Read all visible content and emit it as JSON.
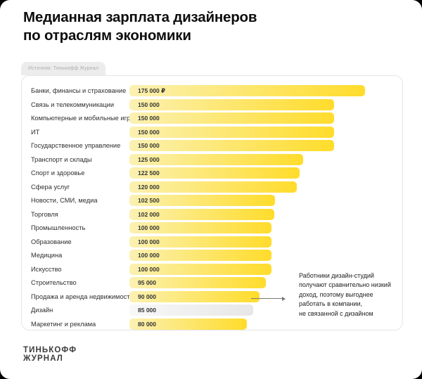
{
  "header": {
    "title": "Медианная зарплата дизайнеров\nпо отраслям экономики",
    "source_tag": "Источник: Тинькофф Журнал"
  },
  "footer": {
    "logo": "ТИНЬКОФФ\nЖУРНАЛ"
  },
  "colors": {
    "bar_gradient_start": "#fbf1b2",
    "bar_gradient_end": "#ffdc2b",
    "highlight_gradient_start": "#f8f8f8",
    "highlight_gradient_end": "#e7e7e7",
    "card_border": "#e5e5e5",
    "background": "#ffffff"
  },
  "chart_data": {
    "type": "bar",
    "orientation": "horizontal",
    "title": "Медианная зарплата дизайнеров по отраслям экономики",
    "source": "Источник: Тинькофф Журнал",
    "unit": "₽ (рубли в месяц)",
    "xlim": [
      0,
      175000
    ],
    "grid": false,
    "legend": "none",
    "categories": [
      "Банки, финансы и страхование",
      "Связь и телекоммуникации",
      "Компьютерные и мобильные игры",
      "ИТ",
      "Государственное управление",
      "Транспорт и склады",
      "Спорт и здоровье",
      "Сфера услуг",
      "Новости, СМИ, медиа",
      "Торговля",
      "Промышленность",
      "Образование",
      "Медицина",
      "Искусство",
      "Строительство",
      "Продажа и аренда недвижимости",
      "Дизайн",
      "Маркетинг и реклама"
    ],
    "values": [
      175000,
      150000,
      150000,
      150000,
      150000,
      125000,
      122500,
      120000,
      102500,
      102000,
      100000,
      100000,
      100000,
      100000,
      95000,
      90000,
      85000,
      80000
    ],
    "value_labels": [
      "175 000 ₽",
      "150 000",
      "150 000",
      "150 000",
      "150 000",
      "125 000",
      "122 500",
      "120 000",
      "102 500",
      "102 000",
      "100 000",
      "100 000",
      "100 000",
      "100 000",
      "95 000",
      "90 000",
      "85 000",
      "80 000"
    ],
    "highlight_category": "Дизайн",
    "annotation": {
      "text": "Работники дизайн-студий\nполучают сравнительно низкий\nдоход, поэтому выгоднее\nработать в компании,\nне связанной с дизайном",
      "points_to": "Дизайн"
    }
  }
}
